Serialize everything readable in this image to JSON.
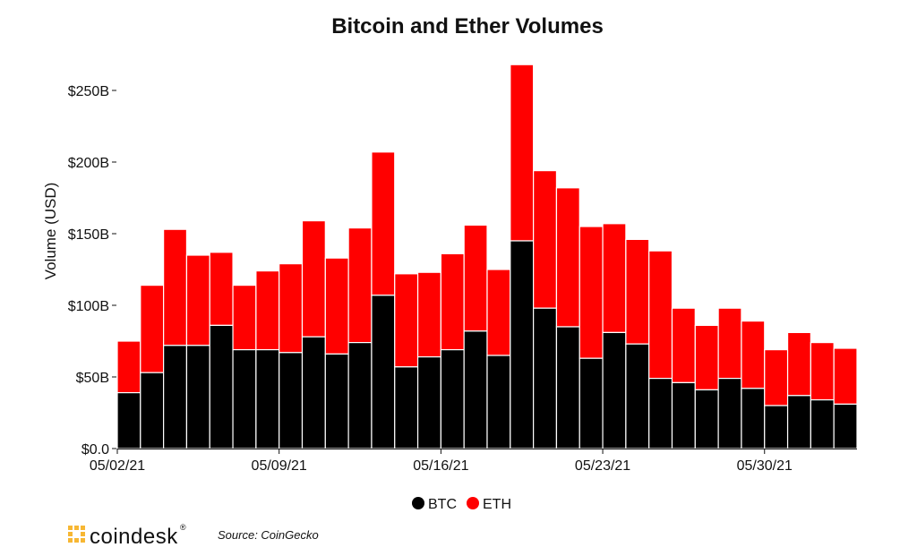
{
  "chart_data": {
    "type": "bar",
    "stacked": true,
    "title": "Bitcoin and Ether Volumes",
    "ylabel": "Volume (USD)",
    "xlabel": "",
    "ylim": [
      0,
      275
    ],
    "y_unit": "B",
    "y_ticks": [
      0,
      50,
      100,
      150,
      200,
      250
    ],
    "y_tick_labels": [
      "$0.0",
      "$50B",
      "$100B",
      "$150B",
      "$200B",
      "$250B"
    ],
    "categories": [
      "05/02/21",
      "05/03/21",
      "05/04/21",
      "05/05/21",
      "05/06/21",
      "05/07/21",
      "05/08/21",
      "05/09/21",
      "05/10/21",
      "05/11/21",
      "05/12/21",
      "05/13/21",
      "05/14/21",
      "05/15/21",
      "05/16/21",
      "05/17/21",
      "05/18/21",
      "05/19/21",
      "05/20/21",
      "05/21/21",
      "05/22/21",
      "05/23/21",
      "05/24/21",
      "05/25/21",
      "05/26/21",
      "05/27/21",
      "05/28/21",
      "05/29/21",
      "05/30/21",
      "05/31/21",
      "06/01/21",
      "06/02/21"
    ],
    "x_tick_labels": [
      {
        "index": 0,
        "label": "05/02/21"
      },
      {
        "index": 7,
        "label": "05/09/21"
      },
      {
        "index": 14,
        "label": "05/16/21"
      },
      {
        "index": 21,
        "label": "05/23/21"
      },
      {
        "index": 28,
        "label": "05/30/21"
      }
    ],
    "series": [
      {
        "name": "BTC",
        "color": "#000000",
        "values": [
          39,
          53,
          72,
          72,
          86,
          69,
          69,
          67,
          78,
          66,
          74,
          107,
          57,
          64,
          69,
          82,
          65,
          145,
          98,
          85,
          63,
          81,
          73,
          49,
          46,
          41,
          49,
          42,
          30,
          37,
          34,
          31
        ]
      },
      {
        "name": "ETH",
        "color": "#ff0000",
        "values": [
          36,
          61,
          81,
          63,
          51,
          45,
          55,
          62,
          81,
          67,
          80,
          100,
          65,
          59,
          67,
          74,
          60,
          123,
          96,
          97,
          92,
          76,
          73,
          89,
          52,
          45,
          49,
          47,
          39,
          44,
          40,
          39
        ]
      }
    ],
    "legend": {
      "position": "bottom-center",
      "items": [
        "BTC",
        "ETH"
      ]
    },
    "grid": false
  },
  "footer": {
    "brand": "coindesk",
    "brand_mark": "®",
    "brand_color": "#f7b733",
    "source": "Source: CoinGecko"
  }
}
